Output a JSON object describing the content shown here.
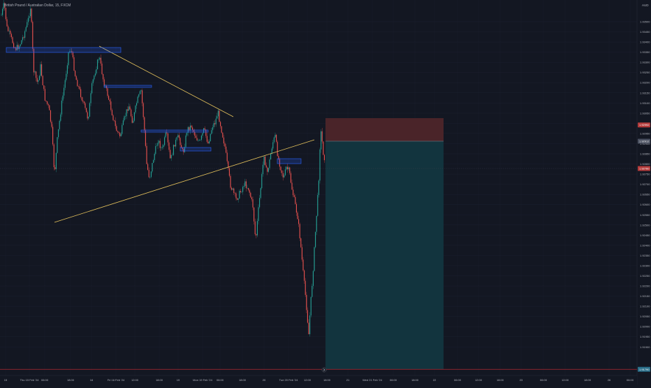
{
  "window": {
    "title": "British Pound / Australian Dollar, 15, FXCM"
  },
  "colors": {
    "background": "#131722",
    "up_candle": "#26a69a",
    "down_candle": "#ef5350",
    "trendline": "#e6c35c",
    "zone_border": "#2962ff",
    "stop_zone": "#4a2429",
    "target_zone": "#12343e",
    "horizontal_line": "#b22833"
  },
  "price_axis": {
    "currency": "AUD",
    "labels": [
      "1.93500",
      "1.93450",
      "1.93400",
      "1.93350",
      "1.93300",
      "1.93250",
      "1.93200",
      "1.93150",
      "1.93100",
      "1.93050",
      "1.93000",
      "1.92950",
      "1.92900",
      "1.92850",
      "1.92800",
      "1.92750",
      "1.92700",
      "1.92650",
      "1.92600",
      "1.92550",
      "1.92500",
      "1.92450",
      "1.92400",
      "1.92350",
      "1.92300",
      "1.92250",
      "1.92200",
      "1.92150",
      "1.92100",
      "1.92050",
      "1.92000",
      "1.91950",
      "1.91900"
    ],
    "badges": {
      "stop": "1.92992",
      "entry": "1.92912",
      "current": "1.92760",
      "line": "1.91790"
    }
  },
  "time_axis": {
    "labels": [
      "15",
      "Thu 15 Feb '24",
      "06:00",
      "18:00",
      "16",
      "Fri 16 Feb '24",
      "12:00",
      "18:00",
      "19",
      "Mon 19 Feb '24",
      "06:00",
      "18:00",
      "20",
      "Tue 20 Feb '24",
      "12:00",
      "18:00",
      "21",
      "Wed 21 Feb '24",
      "06:00",
      "18:00",
      "22",
      "06:00",
      "12:00",
      "18:00",
      "23",
      "06:00",
      "12:00",
      "18:00",
      "26",
      "06:00"
    ]
  },
  "scroll_button_icon": "chevron-right-icon",
  "chart_data": {
    "type": "candlestick",
    "symbol": "British Pound / Australian Dollar",
    "interval": "15",
    "source": "FXCM",
    "y_range": [
      1.9178,
      1.9355
    ],
    "trendlines": [
      {
        "from_time": "15 Feb 09:00",
        "from_price": 1.9247,
        "to_time": "20 Feb 09:00",
        "to_price": 1.9293
      },
      {
        "from_time": "16 Feb 05:00",
        "from_price": 1.9329,
        "to_time": "19 Feb 03:00",
        "to_price": 1.9302
      }
    ],
    "position": {
      "side": "short",
      "stop": 1.92992,
      "entry": 1.92912,
      "target": 1.9179
    }
  }
}
